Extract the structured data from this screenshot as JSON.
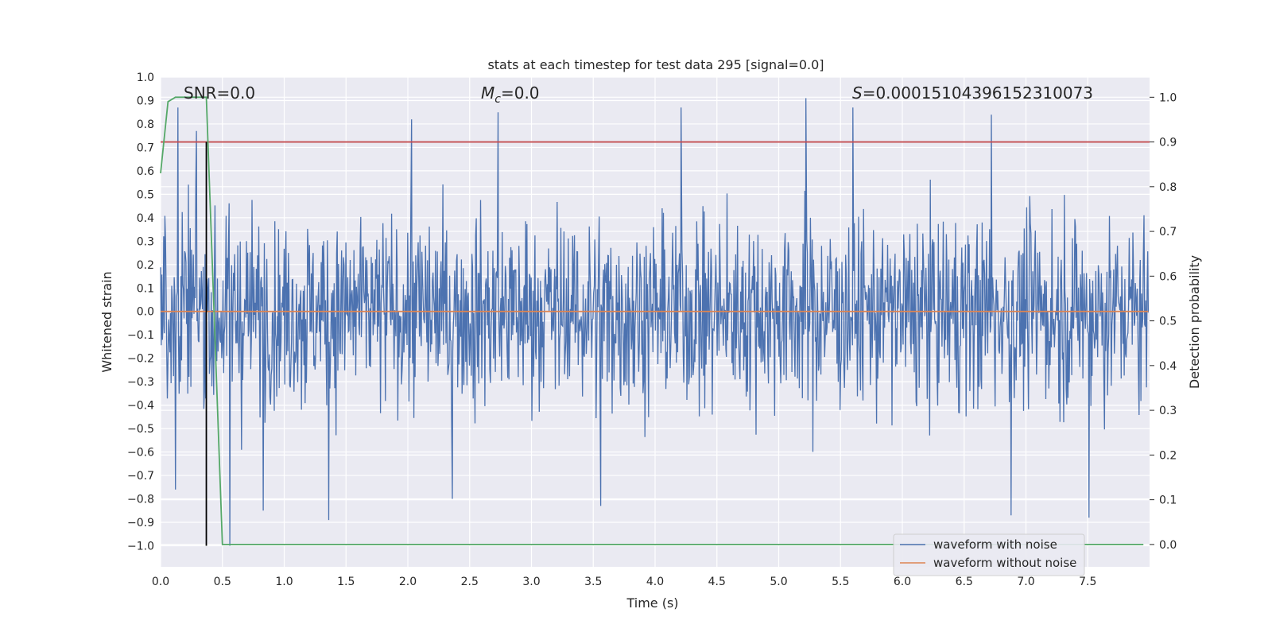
{
  "chart_data": {
    "type": "line",
    "title": "stats at each timestep for test data 295 [signal=0.0]",
    "xlabel": "Time (s)",
    "ylabel_left": "Whitened strain",
    "ylabel_right": "Detection probability",
    "xlim": [
      0.0,
      8.0
    ],
    "ylim_left": [
      -1.09,
      1.0
    ],
    "ylim_right": [
      -0.05,
      1.045
    ],
    "x_ticks": [
      "0.0",
      "0.5",
      "1.0",
      "1.5",
      "2.0",
      "2.5",
      "3.0",
      "3.5",
      "4.0",
      "4.5",
      "5.0",
      "5.5",
      "6.0",
      "6.5",
      "7.0",
      "7.5"
    ],
    "y_left_ticks": [
      "1.0",
      "0.9",
      "0.8",
      "0.7",
      "0.6",
      "0.5",
      "0.4",
      "0.3",
      "0.2",
      "0.1",
      "0.0",
      "-0.1",
      "-0.2",
      "-0.3",
      "-0.4",
      "-0.5",
      "-0.6",
      "-0.7",
      "-0.8",
      "-0.9",
      "-1.0"
    ],
    "y_right_ticks": [
      "0.0",
      "0.1",
      "0.2",
      "0.3",
      "0.4",
      "0.5",
      "0.6",
      "0.7",
      "0.8",
      "0.9",
      "1.0"
    ],
    "grid": true,
    "legend_position": "lower right",
    "annotations": {
      "snr": "SNR=0.0",
      "mc_symbol": "M",
      "mc_sub": "c",
      "mc_value": "=0.0",
      "s_symbol": "S",
      "s_value": "=0.00015104396152310073"
    },
    "series": [
      {
        "name": "waveform with noise",
        "axis": "left",
        "color": "#4c72b0",
        "style": "dense noise, roughly within -1.0 to 0.92",
        "x_range": [
          0.0,
          7.99
        ],
        "peaks": [
          {
            "x": 0.14,
            "y": 0.87
          },
          {
            "x": 0.29,
            "y": 0.77
          },
          {
            "x": 2.03,
            "y": 0.82
          },
          {
            "x": 2.73,
            "y": 0.85
          },
          {
            "x": 4.21,
            "y": 0.87
          },
          {
            "x": 5.22,
            "y": 0.91
          },
          {
            "x": 5.6,
            "y": 0.87
          },
          {
            "x": 6.72,
            "y": 0.84
          }
        ],
        "troughs": [
          {
            "x": 0.12,
            "y": -0.76
          },
          {
            "x": 0.56,
            "y": -1.0
          },
          {
            "x": 0.83,
            "y": -0.85
          },
          {
            "x": 1.36,
            "y": -0.89
          },
          {
            "x": 2.36,
            "y": -0.8
          },
          {
            "x": 3.56,
            "y": -0.83
          },
          {
            "x": 6.88,
            "y": -0.87
          },
          {
            "x": 7.51,
            "y": -0.88
          }
        ]
      },
      {
        "name": "waveform without noise",
        "axis": "left",
        "color": "#dd8452",
        "x": [
          0.0,
          7.99
        ],
        "y": [
          0.0,
          0.0
        ]
      },
      {
        "name": "",
        "axis": "right",
        "color": "#55a868",
        "x": [
          0.0,
          0.06,
          0.12,
          0.25,
          0.37,
          0.5,
          7.95
        ],
        "y": [
          0.83,
          0.99,
          1.0,
          1.0,
          1.0,
          0.0,
          0.0
        ]
      }
    ],
    "threshold": {
      "axis": "right",
      "y": 0.9,
      "color": "#c44e52"
    },
    "marker_line": {
      "x": 0.37,
      "y_from": -1.0,
      "y_to": 0.9,
      "color": "#000000"
    }
  }
}
